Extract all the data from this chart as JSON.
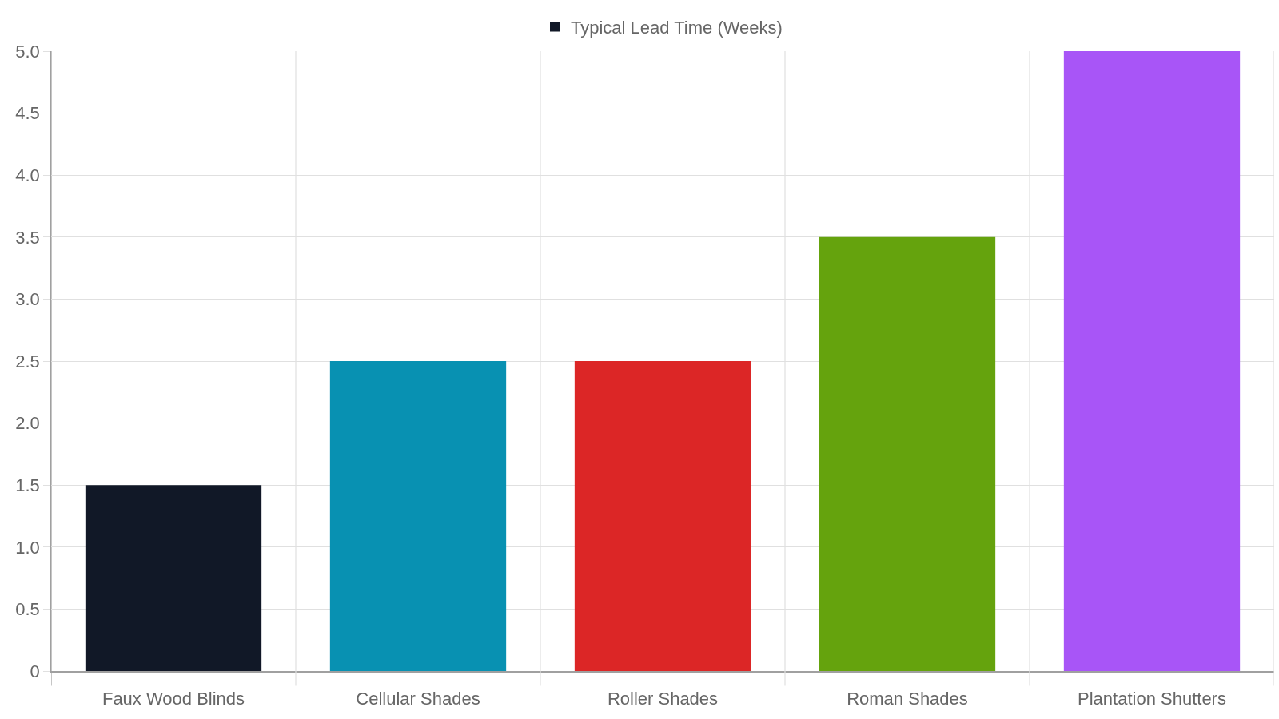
{
  "chart_data": {
    "type": "bar",
    "categories": [
      "Faux Wood Blinds",
      "Cellular Shades",
      "Roller Shades",
      "Roman Shades",
      "Plantation Shutters"
    ],
    "series": [
      {
        "name": "Typical Lead Time (Weeks)",
        "colors": [
          "#111827",
          "#0891b2",
          "#dc2626",
          "#65a30d",
          "#a855f7"
        ],
        "values": [
          1.5,
          2.5,
          2.5,
          3.5,
          5.0
        ]
      }
    ],
    "ylim": [
      0,
      5
    ],
    "yticks": [
      0,
      0.5,
      {
        "value": 1,
        "label": "1.0"
      },
      1.5,
      {
        "value": 2,
        "label": "2.0"
      },
      2.5,
      {
        "value": 3,
        "label": "3.0"
      },
      3.5,
      {
        "value": 4,
        "label": "4.0"
      },
      4.5,
      {
        "value": 5,
        "label": "5.0"
      }
    ],
    "grid": true,
    "legend": "top"
  }
}
